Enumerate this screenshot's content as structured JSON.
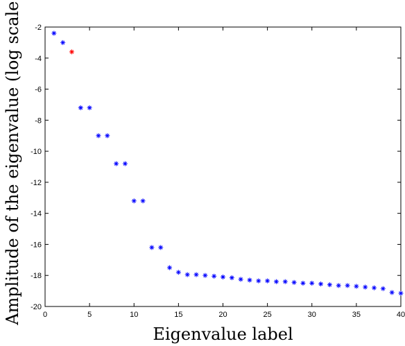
{
  "chart_data": {
    "type": "scatter",
    "title": "",
    "xlabel": "Eigenvalue label",
    "ylabel": "Amplitude of the eigenvalue (log scale)",
    "xlim": [
      0,
      40
    ],
    "ylim": [
      -20,
      -2
    ],
    "xticks": [
      0,
      5,
      10,
      15,
      20,
      25,
      30,
      35,
      40
    ],
    "yticks": [
      -2,
      -4,
      -6,
      -8,
      -10,
      -12,
      -14,
      -16,
      -18,
      -20
    ],
    "grid": false,
    "legend": "none",
    "marker": "*",
    "series": [
      {
        "color": "#0000ff",
        "x": [
          1,
          2,
          4,
          5,
          6,
          7,
          8,
          9,
          10,
          11,
          12,
          13,
          14,
          15,
          16,
          17,
          18,
          19,
          20,
          21,
          22,
          23,
          24,
          25,
          26,
          27,
          28,
          29,
          30,
          31,
          32,
          33,
          34,
          35,
          36,
          37,
          38,
          39,
          40
        ],
        "y": [
          -2.4,
          -3.0,
          -7.2,
          -7.2,
          -9.0,
          -9.0,
          -10.8,
          -10.8,
          -13.2,
          -13.2,
          -16.2,
          -16.2,
          -17.5,
          -17.8,
          -17.95,
          -17.95,
          -18.0,
          -18.05,
          -18.1,
          -18.15,
          -18.25,
          -18.3,
          -18.35,
          -18.35,
          -18.4,
          -18.4,
          -18.45,
          -18.5,
          -18.5,
          -18.55,
          -18.6,
          -18.65,
          -18.65,
          -18.7,
          -18.75,
          -18.8,
          -18.85,
          -19.1,
          -19.15
        ]
      },
      {
        "color": "#ff0000",
        "x": [
          3
        ],
        "y": [
          -3.6
        ]
      }
    ]
  }
}
